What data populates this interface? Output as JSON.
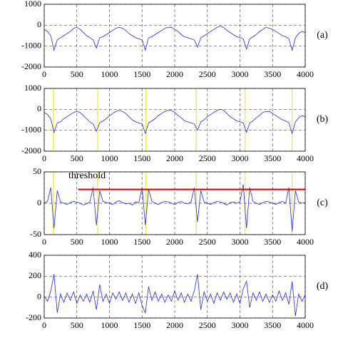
{
  "chart_data": [
    {
      "type": "line",
      "label": "(a)",
      "xlim": [
        0,
        4000
      ],
      "ylim": [
        -2000,
        1000
      ],
      "xticks": [
        0,
        500,
        1000,
        1500,
        2000,
        2500,
        3000,
        3500,
        4000
      ],
      "yticks": [
        -2000,
        -1000,
        0,
        1000
      ],
      "grid": true,
      "x": [
        0,
        50,
        100,
        150,
        200,
        250,
        300,
        350,
        400,
        450,
        500,
        550,
        600,
        650,
        700,
        750,
        800,
        850,
        900,
        950,
        1000,
        1050,
        1100,
        1150,
        1200,
        1250,
        1300,
        1350,
        1400,
        1450,
        1500,
        1550,
        1600,
        1650,
        1700,
        1750,
        1800,
        1850,
        1900,
        1950,
        2000,
        2050,
        2100,
        2150,
        2200,
        2250,
        2300,
        2350,
        2400,
        2450,
        2500,
        2550,
        2600,
        2650,
        2700,
        2750,
        2800,
        2850,
        2900,
        2950,
        3000,
        3050,
        3100,
        3150,
        3200,
        3250,
        3300,
        3350,
        3400,
        3450,
        3500,
        3550,
        3600,
        3650,
        3700,
        3750,
        3800,
        3850,
        3900,
        3950,
        4000
      ],
      "series": [
        {
          "color": "#2b2bd9",
          "values": [
            -200,
            -300,
            -500,
            -1200,
            -700,
            -600,
            -500,
            -400,
            -300,
            -150,
            -100,
            -200,
            -350,
            -500,
            -600,
            -700,
            -1100,
            -600,
            -550,
            -450,
            -350,
            -250,
            -150,
            -100,
            -150,
            -250,
            -400,
            -500,
            -600,
            -650,
            -700,
            -1200,
            -600,
            -550,
            -450,
            -350,
            -250,
            -150,
            -100,
            -100,
            -200,
            -300,
            -450,
            -550,
            -600,
            -650,
            -700,
            -1050,
            -600,
            -500,
            -400,
            -300,
            -200,
            -100,
            -50,
            -100,
            -250,
            -350,
            -450,
            -550,
            -600,
            -650,
            -1150,
            -650,
            -550,
            -450,
            -300,
            -200,
            -100,
            -150,
            -200,
            -300,
            -400,
            -500,
            -550,
            -650,
            -1200,
            -600,
            -400,
            -300,
            -350
          ]
        }
      ]
    },
    {
      "type": "line",
      "label": "(b)",
      "xlim": [
        0,
        4000
      ],
      "ylim": [
        -2000,
        1000
      ],
      "xticks": [
        0,
        500,
        1000,
        1500,
        2000,
        2500,
        3000,
        3500,
        4000
      ],
      "yticks": [
        -2000,
        -1000,
        0,
        1000
      ],
      "grid": true,
      "markers": [
        140,
        820,
        1560,
        2330,
        3080,
        3800
      ],
      "marker_color": "#e8e800",
      "x": [
        0,
        50,
        100,
        150,
        200,
        250,
        300,
        350,
        400,
        450,
        500,
        550,
        600,
        650,
        700,
        750,
        800,
        850,
        900,
        950,
        1000,
        1050,
        1100,
        1150,
        1200,
        1250,
        1300,
        1350,
        1400,
        1450,
        1500,
        1550,
        1600,
        1650,
        1700,
        1750,
        1800,
        1850,
        1900,
        1950,
        2000,
        2050,
        2100,
        2150,
        2200,
        2250,
        2300,
        2350,
        2400,
        2450,
        2500,
        2550,
        2600,
        2650,
        2700,
        2750,
        2800,
        2850,
        2900,
        2950,
        3000,
        3050,
        3100,
        3150,
        3200,
        3250,
        3300,
        3350,
        3400,
        3450,
        3500,
        3550,
        3600,
        3650,
        3700,
        3750,
        3800,
        3850,
        3900,
        3950,
        4000
      ],
      "series": [
        {
          "color": "#2b2bd9",
          "values": [
            -150,
            -250,
            -450,
            -1100,
            -650,
            -600,
            -450,
            -350,
            -250,
            -150,
            -100,
            -150,
            -300,
            -450,
            -600,
            -700,
            -1050,
            -650,
            -550,
            -450,
            -300,
            -200,
            -100,
            -50,
            -100,
            -200,
            -350,
            -500,
            -600,
            -650,
            -700,
            -1150,
            -650,
            -550,
            -450,
            -300,
            -200,
            -100,
            -50,
            -50,
            -150,
            -300,
            -400,
            -550,
            -600,
            -650,
            -700,
            -1000,
            -600,
            -500,
            -350,
            -250,
            -150,
            -50,
            0,
            -50,
            -200,
            -350,
            -450,
            -550,
            -600,
            -650,
            -1100,
            -650,
            -550,
            -400,
            -300,
            -150,
            -100,
            -100,
            -200,
            -300,
            -400,
            -500,
            -550,
            -650,
            -1150,
            -600,
            -400,
            -300,
            -350
          ]
        }
      ]
    },
    {
      "type": "line",
      "label": "(c)",
      "xlim": [
        0,
        4000
      ],
      "ylim": [
        -50,
        50
      ],
      "xticks": [
        0,
        500,
        1000,
        1500,
        2000,
        2500,
        3000,
        3500,
        4000
      ],
      "yticks": [
        -50,
        0,
        50
      ],
      "grid": true,
      "markers": [
        140,
        820,
        1560,
        2330,
        3080,
        3800
      ],
      "marker_color": "#e8e800",
      "threshold": {
        "label": "threshold",
        "value": 22,
        "xstart": 520,
        "color": "#d40000"
      },
      "x": [
        0,
        50,
        100,
        150,
        200,
        250,
        300,
        350,
        400,
        450,
        500,
        550,
        600,
        650,
        700,
        750,
        800,
        850,
        900,
        950,
        1000,
        1050,
        1100,
        1150,
        1200,
        1250,
        1300,
        1350,
        1400,
        1450,
        1500,
        1550,
        1600,
        1650,
        1700,
        1750,
        1800,
        1850,
        1900,
        1950,
        2000,
        2050,
        2100,
        2150,
        2200,
        2250,
        2300,
        2350,
        2400,
        2450,
        2500,
        2550,
        2600,
        2650,
        2700,
        2750,
        2800,
        2850,
        2900,
        2950,
        3000,
        3050,
        3100,
        3150,
        3200,
        3250,
        3300,
        3350,
        3400,
        3450,
        3500,
        3550,
        3600,
        3650,
        3700,
        3750,
        3800,
        3850,
        3900,
        3950,
        4000
      ],
      "series": [
        {
          "color": "#2b2bd9",
          "values": [
            0,
            3,
            25,
            -40,
            20,
            2,
            0,
            -2,
            1,
            3,
            2,
            0,
            -3,
            -1,
            2,
            25,
            -35,
            20,
            3,
            1,
            0,
            -2,
            2,
            4,
            1,
            -1,
            0,
            -3,
            2,
            1,
            25,
            -35,
            22,
            3,
            0,
            -2,
            1,
            3,
            2,
            0,
            -2,
            1,
            3,
            0,
            -1,
            2,
            25,
            -30,
            20,
            2,
            0,
            -2,
            1,
            3,
            2,
            0,
            -3,
            1,
            2,
            0,
            2,
            30,
            -40,
            25,
            3,
            0,
            -2,
            1,
            3,
            2,
            0,
            -2,
            1,
            3,
            0,
            25,
            -45,
            20,
            2,
            0,
            1
          ]
        }
      ]
    },
    {
      "type": "line",
      "label": "(d)",
      "xlim": [
        0,
        4000
      ],
      "ylim": [
        -200,
        400
      ],
      "xticks": [
        0,
        500,
        1000,
        1500,
        2000,
        2500,
        3000,
        3500,
        4000
      ],
      "yticks": [
        -200,
        0,
        200,
        400
      ],
      "grid": true,
      "x": [
        0,
        50,
        100,
        150,
        200,
        250,
        300,
        350,
        400,
        450,
        500,
        550,
        600,
        650,
        700,
        750,
        800,
        850,
        900,
        950,
        1000,
        1050,
        1100,
        1150,
        1200,
        1250,
        1300,
        1350,
        1400,
        1450,
        1500,
        1550,
        1600,
        1650,
        1700,
        1750,
        1800,
        1850,
        1900,
        1950,
        2000,
        2050,
        2100,
        2150,
        2200,
        2250,
        2300,
        2350,
        2400,
        2450,
        2500,
        2550,
        2600,
        2650,
        2700,
        2750,
        2800,
        2850,
        2900,
        2950,
        3000,
        3050,
        3100,
        3150,
        3200,
        3250,
        3300,
        3350,
        3400,
        3450,
        3500,
        3550,
        3600,
        3650,
        3700,
        3750,
        3800,
        3850,
        3900,
        3950,
        4000
      ],
      "series": [
        {
          "color": "#2b2bd9",
          "values": [
            10,
            -40,
            60,
            220,
            -150,
            30,
            -50,
            40,
            -30,
            50,
            -60,
            20,
            -40,
            30,
            -50,
            60,
            -120,
            120,
            -40,
            30,
            -60,
            40,
            -20,
            50,
            -30,
            40,
            -50,
            30,
            -60,
            40,
            -80,
            -150,
            100,
            -30,
            50,
            -40,
            30,
            -50,
            20,
            -40,
            60,
            -30,
            40,
            -50,
            30,
            -40,
            60,
            220,
            -120,
            50,
            -40,
            30,
            -60,
            40,
            -30,
            50,
            -20,
            40,
            -50,
            30,
            -60,
            80,
            150,
            -100,
            40,
            -30,
            50,
            -40,
            30,
            -50,
            20,
            -40,
            60,
            -30,
            40,
            -70,
            150,
            -180,
            30,
            -40,
            20
          ]
        }
      ]
    }
  ]
}
